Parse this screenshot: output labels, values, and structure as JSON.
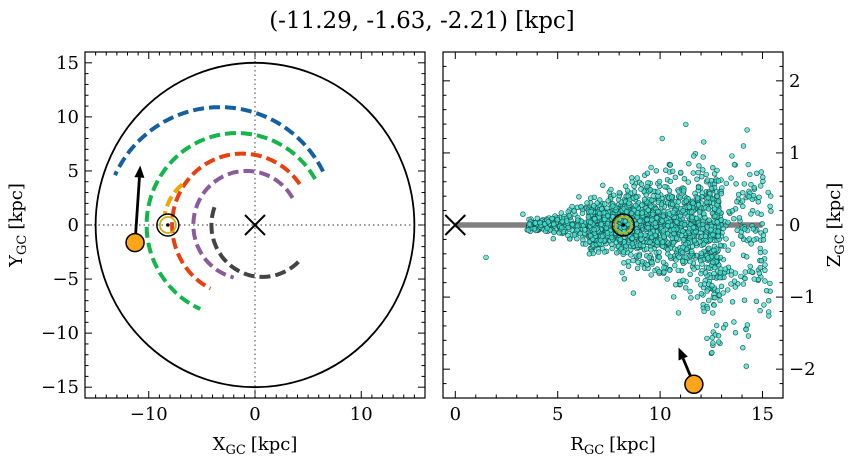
{
  "figure_title": "(-11.29, -1.63, -2.21) [kpc]",
  "chart_data": [
    {
      "type": "scatter",
      "panel": "left",
      "xlabel_main": "X",
      "xlabel_sub": "GC",
      "xlabel_unit": "[kpc]",
      "ylabel_main": "Y",
      "ylabel_sub": "GC",
      "ylabel_unit": "[kpc]",
      "xlim": [
        -16,
        16
      ],
      "ylim": [
        -16,
        16
      ],
      "xticks": [
        -10,
        0,
        10
      ],
      "xtick_labels": [
        "−10",
        "0",
        "10"
      ],
      "yticks": [
        -15,
        -10,
        -5,
        0,
        5,
        10,
        15
      ],
      "ytick_labels": [
        "−15",
        "−10",
        "−5",
        "0",
        "5",
        "10",
        "15"
      ],
      "boundary_circle_radius": 15,
      "galactic_center": [
        0,
        0
      ],
      "crosshair_lines": "dotted at x=0 and y=0",
      "spiral_arms": [
        {
          "color": "#1560a0",
          "radius": 10.9,
          "center": [
            -3.3,
            0
          ],
          "theta_deg": [
            27,
            155
          ]
        },
        {
          "color": "#12b64a",
          "radius": 8.5,
          "center": [
            -1.7,
            0
          ],
          "theta_deg": [
            30,
            246
          ]
        },
        {
          "color": "#e8400f",
          "radius": 6.6,
          "center": [
            -1.2,
            0
          ],
          "theta_deg": [
            35,
            243
          ]
        },
        {
          "color": "#f5a300",
          "radius": 4.9,
          "center": [
            -3.7,
            0
          ],
          "theta_deg": [
            130,
            168
          ]
        },
        {
          "color": "#8a5c9c",
          "radius": 5.0,
          "center": [
            -0.8,
            0
          ],
          "theta_deg": [
            30,
            256
          ]
        },
        {
          "color": "#444444",
          "radius": 4.8,
          "center": [
            0.7,
            0
          ],
          "theta_deg": [
            160,
            318
          ]
        }
      ],
      "sun": {
        "x": -8.2,
        "y": 0
      },
      "object": {
        "x": -11.29,
        "y": -1.63
      },
      "velocity_arrow": {
        "from": [
          -11.29,
          -1.63
        ],
        "to": [
          -10.8,
          5.5
        ]
      },
      "object_color": "#ffa51a"
    },
    {
      "type": "scatter",
      "panel": "right",
      "xlabel_main": "R",
      "xlabel_sub": "GC",
      "xlabel_unit": "[kpc]",
      "ylabel_main": "Z",
      "ylabel_sub": "GC",
      "ylabel_unit": "[kpc]",
      "xlim": [
        -0.6,
        16
      ],
      "ylim": [
        -2.4,
        2.4
      ],
      "xticks": [
        0,
        5,
        10,
        15
      ],
      "xtick_labels": [
        "0",
        "5",
        "10",
        "15"
      ],
      "yticks": [
        -2,
        -1,
        0,
        1,
        2
      ],
      "ytick_labels": [
        "−2",
        "−1",
        "0",
        "1",
        "2"
      ],
      "disk_line": {
        "x": [
          0,
          15
        ],
        "y": 0,
        "color": "#808080"
      },
      "galactic_center": [
        0,
        0
      ],
      "sun": {
        "x": 8.2,
        "y": 0
      },
      "object": {
        "x": 11.65,
        "y": -2.21
      },
      "velocity_arrow": {
        "from": [
          11.65,
          -2.21
        ],
        "to": [
          10.9,
          -1.7
        ]
      },
      "object_color": "#ffa51a",
      "stars_color": "#40e0d0",
      "stars_note": "cloud of ~2000 field stars centred on the disk, denser near R=6–13 kpc"
    }
  ]
}
